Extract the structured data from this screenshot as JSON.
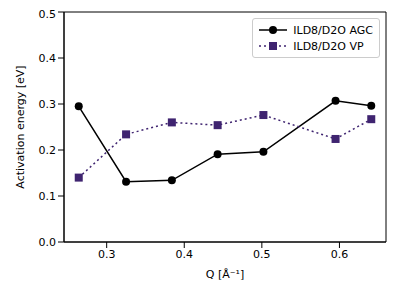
{
  "chart_data": {
    "type": "line",
    "x_label": "Q [Å⁻¹]",
    "y_label": "Activation energy [eV]",
    "x": [
      0.264,
      0.325,
      0.384,
      0.443,
      0.502,
      0.595,
      0.641
    ],
    "series": [
      {
        "name": "ILD8/D2O AGC",
        "color": "#000000",
        "marker": "circle",
        "line_style": "solid",
        "values": [
          0.295,
          0.131,
          0.134,
          0.191,
          0.196,
          0.307,
          0.296
        ]
      },
      {
        "name": "ILD8/D2O VP",
        "color": "#3f2470",
        "marker": "square",
        "line_style": "dotted",
        "values": [
          0.14,
          0.234,
          0.26,
          0.254,
          0.276,
          0.224,
          0.267
        ]
      }
    ],
    "xlim": [
      0.245,
      0.66
    ],
    "ylim": [
      0,
      0.5
    ],
    "xticks": [
      0.3,
      0.4,
      0.5,
      0.6
    ],
    "yticks": [
      {
        "value": 0,
        "label": "0.0"
      },
      0.1,
      0.2,
      0.3,
      0.4,
      0.5
    ],
    "grid": false,
    "legend": "upper right"
  }
}
